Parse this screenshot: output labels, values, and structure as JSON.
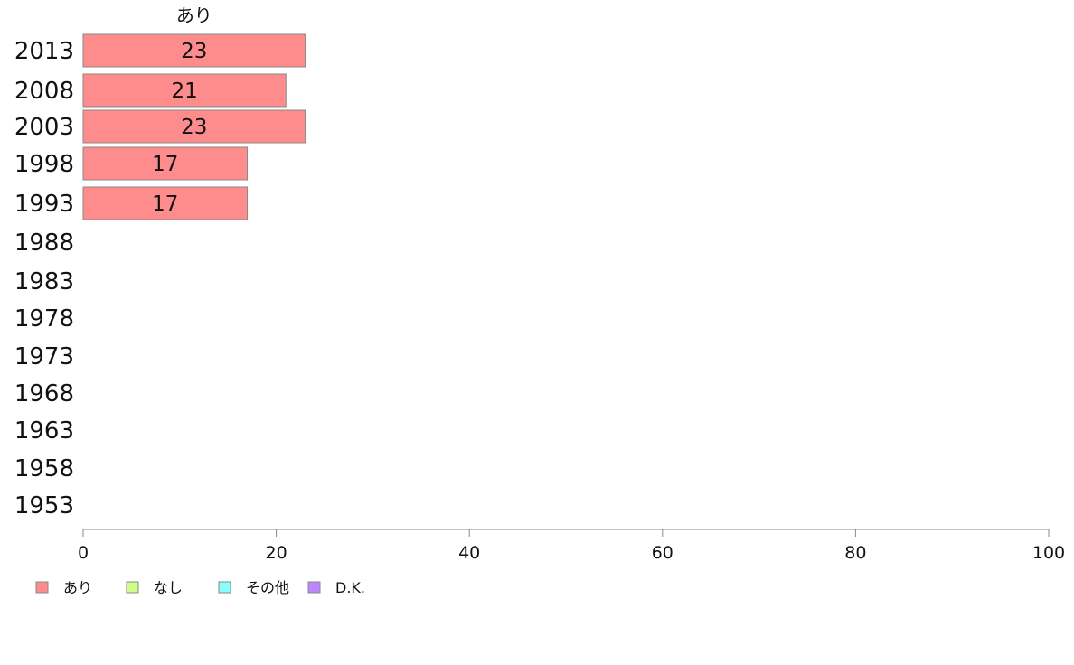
{
  "chart_data": {
    "type": "bar",
    "orientation": "horizontal",
    "stacked": true,
    "categories": [
      "2013",
      "2008",
      "2003",
      "1998",
      "1993",
      "1988",
      "1983",
      "1978",
      "1973",
      "1968",
      "1963",
      "1958",
      "1953"
    ],
    "series": [
      {
        "name": "あり",
        "color": "#ff8c8c",
        "values": [
          23,
          21,
          23,
          17,
          17,
          null,
          null,
          null,
          null,
          null,
          null,
          null,
          null
        ]
      }
    ],
    "bar_labels": [
      "23",
      "21",
      "23",
      "17",
      "17"
    ],
    "series_header": "あり",
    "xlim": [
      0,
      100
    ],
    "xticks": [
      "0",
      "20",
      "40",
      "60",
      "80",
      "100"
    ],
    "legend": {
      "placement": "bottom-left",
      "items": [
        {
          "label": "あり",
          "color": "#ff8c8c"
        },
        {
          "label": "なし",
          "color": "#ccff88"
        },
        {
          "label": "その他",
          "color": "#88ffff"
        },
        {
          "label": "D.K.",
          "color": "#bb88ff"
        }
      ]
    },
    "grid": false
  }
}
